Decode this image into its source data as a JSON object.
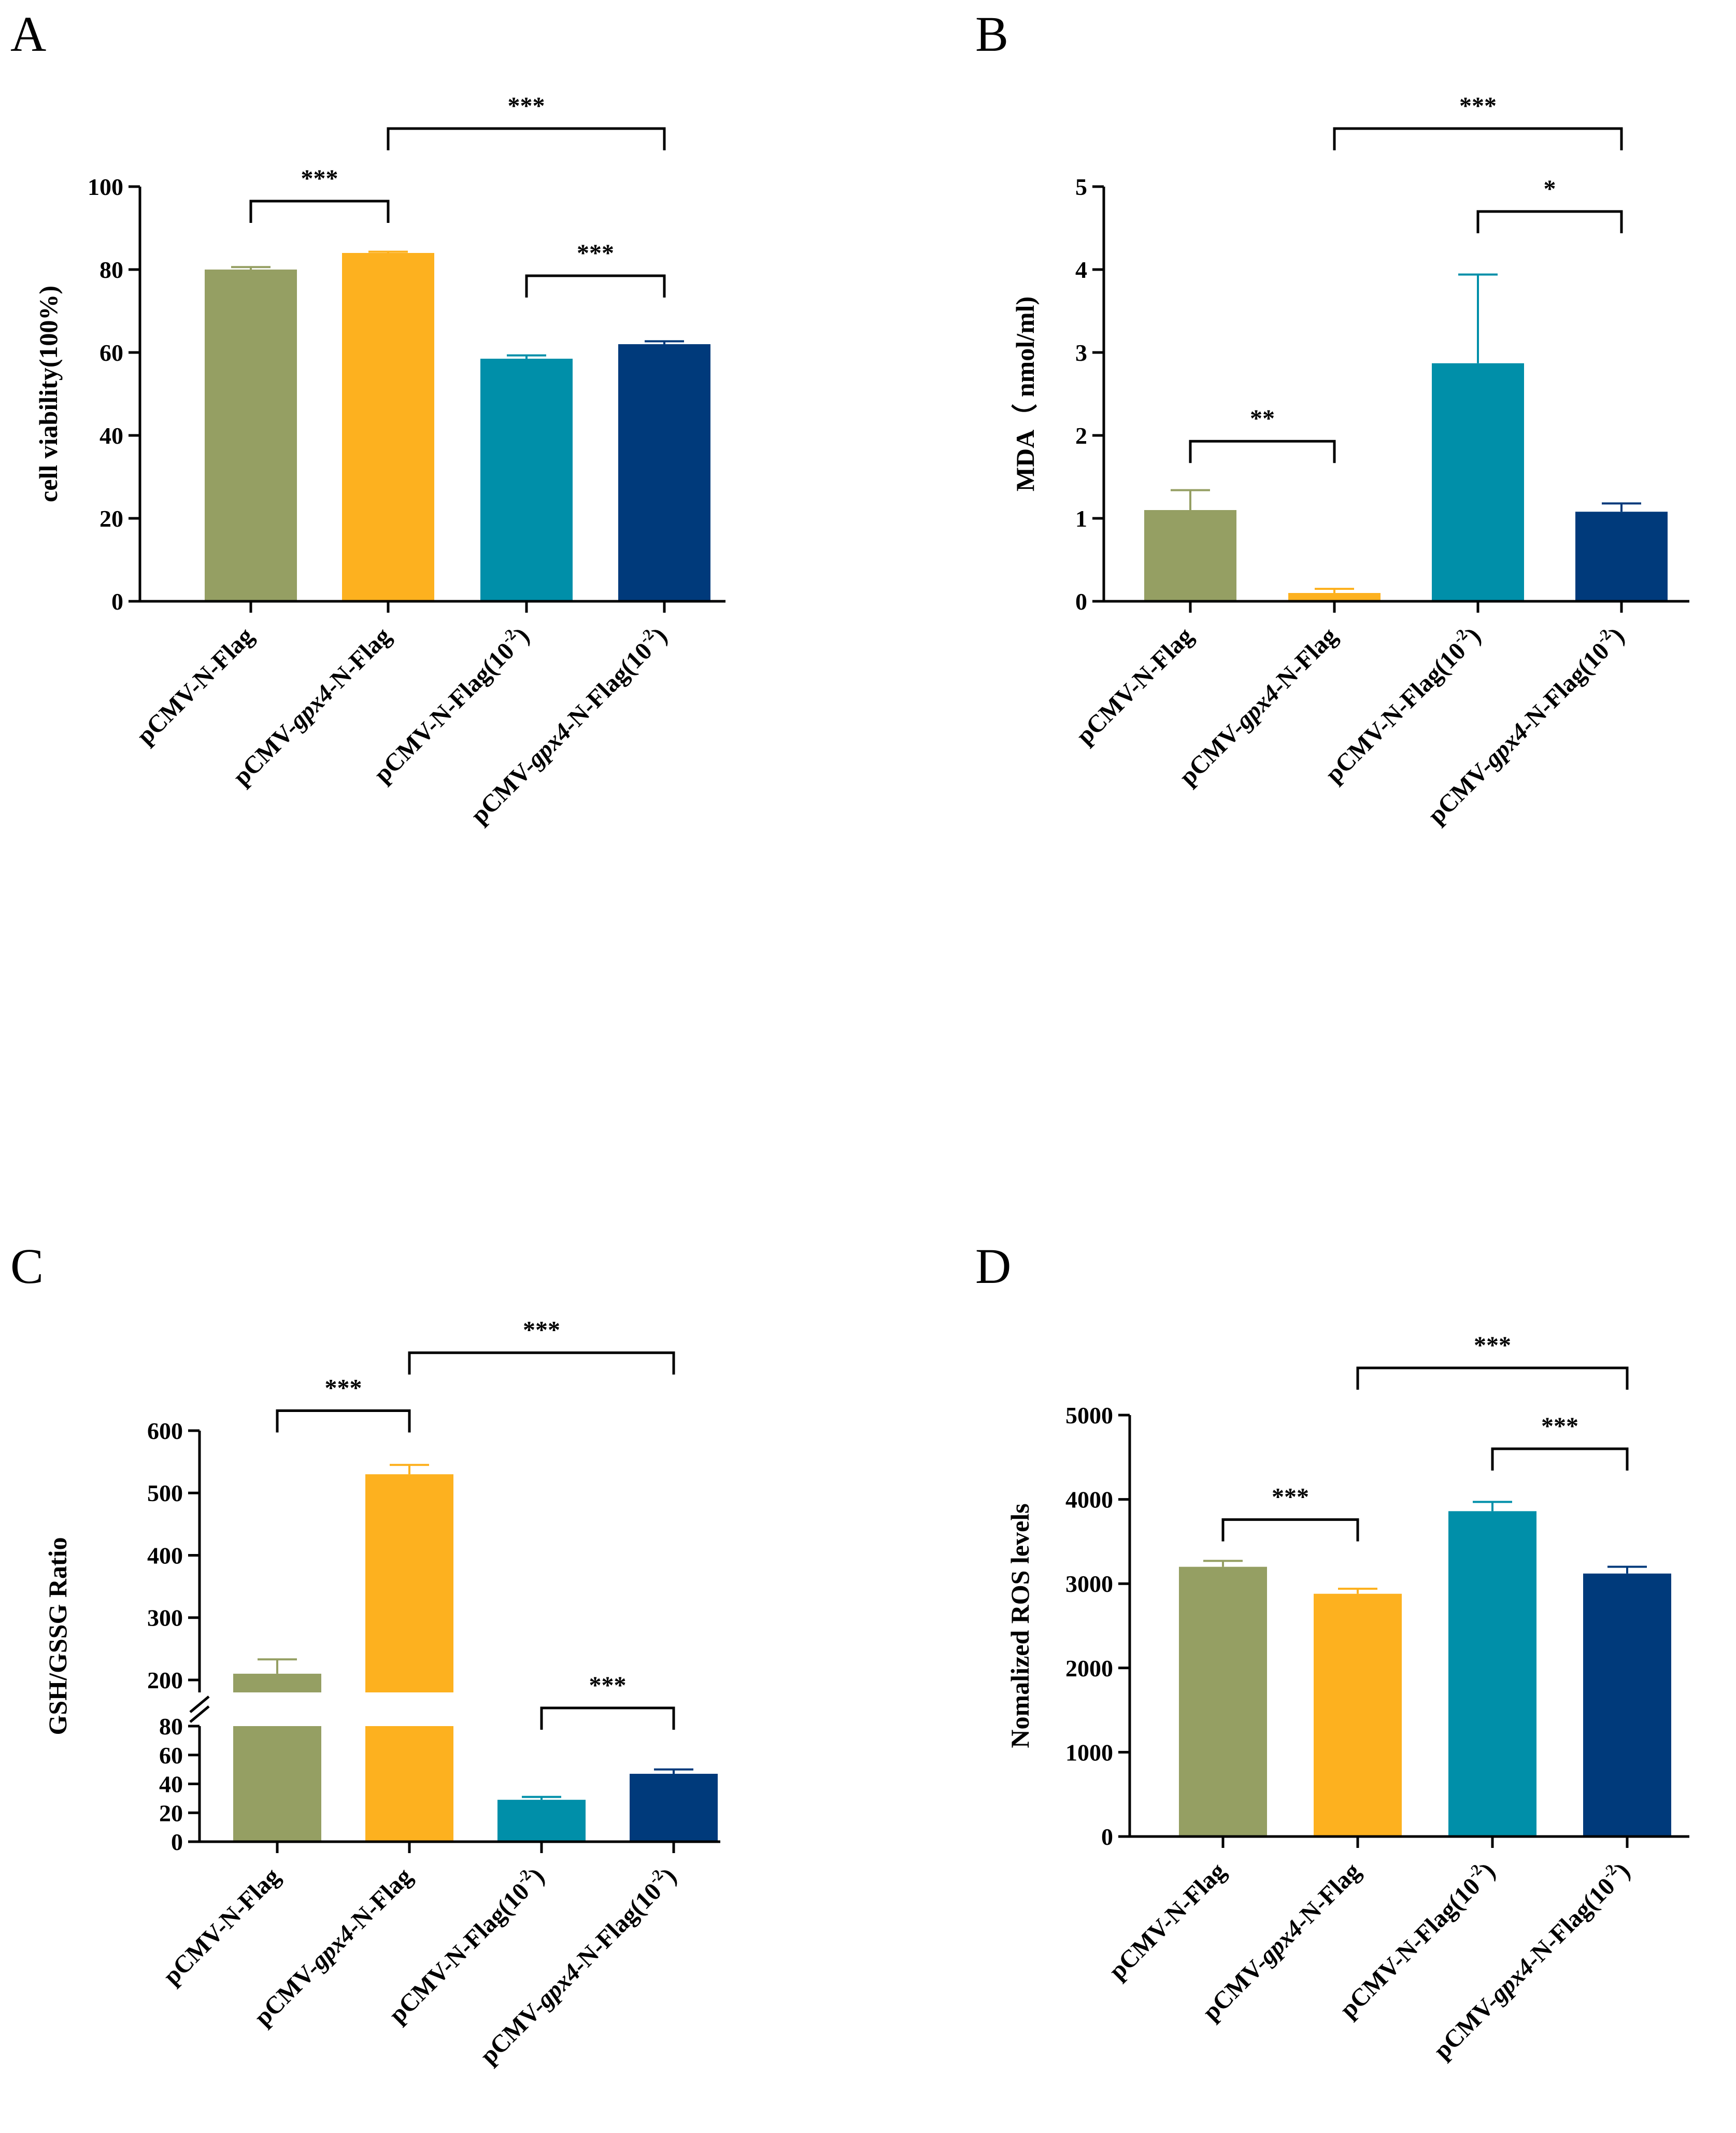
{
  "chart_data": [
    {
      "panel": "A",
      "type": "bar",
      "ylabel": "cell viability(100%)",
      "ylim": [
        0,
        100
      ],
      "yticks": [
        0,
        20,
        40,
        60,
        80,
        100
      ],
      "categories": [
        {
          "prefix": "pCMV-",
          "italic": "",
          "suffix": "N-Flag",
          "exp": ""
        },
        {
          "prefix": "pCMV-",
          "italic": "gpx4",
          "suffix": "-N-Flag",
          "exp": ""
        },
        {
          "prefix": "pCMV-",
          "italic": "",
          "suffix": "N-Flag(10",
          "exp": "-2"
        },
        {
          "prefix": "pCMV-",
          "italic": "gpx4",
          "suffix": "-N-Flag(10",
          "exp": "-2"
        }
      ],
      "values": [
        80,
        84,
        58.5,
        62
      ],
      "errors": [
        0.6,
        0.3,
        0.8,
        0.7
      ],
      "colors": [
        "#959F63",
        "#FDB11F",
        "#008FA9",
        "#003A7B"
      ],
      "significance": [
        {
          "from": 0,
          "to": 1,
          "label": "***",
          "level": 96.5
        },
        {
          "from": 1,
          "to": 3,
          "label": "***",
          "level": 114
        },
        {
          "from": 2,
          "to": 3,
          "label": "***",
          "level": 78.5
        }
      ]
    },
    {
      "panel": "B",
      "type": "bar",
      "ylabel": "MDA（ nmol/ml)",
      "ylim": [
        0,
        5
      ],
      "yticks": [
        0,
        1,
        2,
        3,
        4,
        5
      ],
      "categories": [
        {
          "prefix": "pCMV-",
          "italic": "",
          "suffix": "N-Flag",
          "exp": ""
        },
        {
          "prefix": "pCMV-",
          "italic": "gpx4",
          "suffix": "-N-Flag",
          "exp": ""
        },
        {
          "prefix": "pCMV-",
          "italic": "",
          "suffix": "N-Flag(10",
          "exp": "-2"
        },
        {
          "prefix": "pCMV-",
          "italic": "gpx4",
          "suffix": "-N-Flag(10",
          "exp": "-2"
        }
      ],
      "values": [
        1.1,
        0.1,
        2.87,
        1.08
      ],
      "errors": [
        0.24,
        0.05,
        1.07,
        0.1
      ],
      "colors": [
        "#959F63",
        "#FDB11F",
        "#008FA9",
        "#003A7B"
      ],
      "significance": [
        {
          "from": 0,
          "to": 1,
          "label": "**",
          "level": 1.93
        },
        {
          "from": 1,
          "to": 3,
          "label": "***",
          "level": 5.7
        },
        {
          "from": 2,
          "to": 3,
          "label": "*",
          "level": 4.7
        }
      ]
    },
    {
      "panel": "C",
      "type": "bar",
      "ylabel": "GSH/GSSG Ratio",
      "broken_axis": {
        "lower": [
          0,
          80
        ],
        "upper": [
          180,
          600
        ]
      },
      "yticks_lower": [
        0,
        20,
        40,
        60,
        80
      ],
      "yticks_upper": [
        200,
        300,
        400,
        500,
        600
      ],
      "categories": [
        {
          "prefix": "pCMV-",
          "italic": "",
          "suffix": "N-Flag",
          "exp": ""
        },
        {
          "prefix": "pCMV-",
          "italic": "gpx4",
          "suffix": "-N-Flag",
          "exp": ""
        },
        {
          "prefix": "pCMV-",
          "italic": "",
          "suffix": "N-Flag(10",
          "exp": "-2"
        },
        {
          "prefix": "pCMV-",
          "italic": "gpx4",
          "suffix": "-N-Flag(10",
          "exp": "-2"
        }
      ],
      "values": [
        210,
        530,
        29,
        47
      ],
      "errors": [
        23,
        15,
        2,
        3
      ],
      "colors": [
        "#959F63",
        "#FDB11F",
        "#008FA9",
        "#003A7B"
      ],
      "significance": [
        {
          "from": 0,
          "to": 1,
          "label": "***",
          "level": 632
        },
        {
          "from": 1,
          "to": 3,
          "label": "***",
          "level": 725
        },
        {
          "from": 2,
          "to": 3,
          "label": "***",
          "level": 155
        }
      ]
    },
    {
      "panel": "D",
      "type": "bar",
      "ylabel": "Nomalized ROS levels",
      "ylim": [
        0,
        5000
      ],
      "yticks": [
        0,
        1000,
        2000,
        3000,
        4000,
        5000
      ],
      "categories": [
        {
          "prefix": "pCMV-",
          "italic": "",
          "suffix": "N-Flag",
          "exp": ""
        },
        {
          "prefix": "pCMV-",
          "italic": "gpx4",
          "suffix": "-N-Flag",
          "exp": ""
        },
        {
          "prefix": "pCMV-",
          "italic": "",
          "suffix": "N-Flag(10",
          "exp": "-2"
        },
        {
          "prefix": "pCMV-",
          "italic": "gpx4",
          "suffix": "-N-Flag(10",
          "exp": "-2"
        }
      ],
      "values": [
        3200,
        2880,
        3860,
        3120
      ],
      "errors": [
        70,
        60,
        110,
        80
      ],
      "colors": [
        "#959F63",
        "#FDB11F",
        "#008FA9",
        "#003A7B"
      ],
      "significance": [
        {
          "from": 0,
          "to": 1,
          "label": "***",
          "level": 3760
        },
        {
          "from": 1,
          "to": 3,
          "label": "***",
          "level": 5560
        },
        {
          "from": 2,
          "to": 3,
          "label": "***",
          "level": 4600
        }
      ]
    }
  ]
}
